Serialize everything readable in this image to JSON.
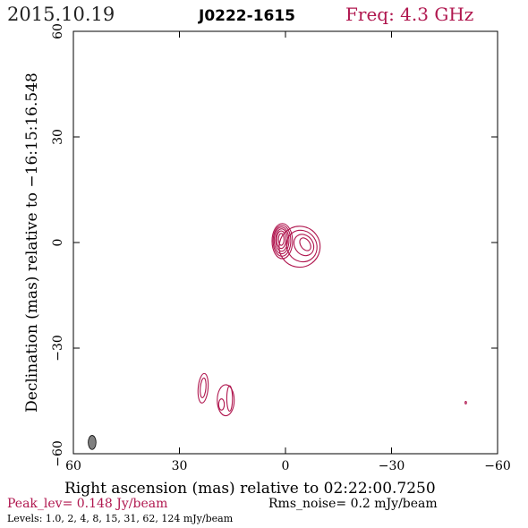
{
  "header": {
    "date": "2015.10.19",
    "source": "J0222-1615",
    "freq": "Freq: 4.3 GHz"
  },
  "footer": {
    "peak": "Peak_lev=  0.148 Jy/beam",
    "rms": "Rms_noise=  0.2 mJy/beam",
    "levels": "Levels: 1.0,   2,   4,   8,  15,  31,  62, 124 mJy/beam"
  },
  "colors": {
    "contour": "#b0174f",
    "header_date": "#222222",
    "freq": "#b0174f",
    "peak": "#b0174f",
    "beam": "#808080"
  },
  "chart_data": {
    "type": "contour",
    "xlabel": "Right ascension (mas) relative to 02:22:00.7250",
    "ylabel": "Declination (mas) relative to −16:15:16.548",
    "xlim": [
      60,
      -60
    ],
    "ylim": [
      -60,
      60
    ],
    "x_ticks": [
      60,
      30,
      0,
      -30,
      -60
    ],
    "x_tick_labels": [
      "60",
      "30",
      "0",
      "−30",
      "−60"
    ],
    "y_ticks": [
      60,
      30,
      0,
      -30,
      -60
    ],
    "y_tick_labels": [
      "60",
      "30",
      "0",
      "−30",
      "−60"
    ],
    "beam": {
      "x": 54.7,
      "y": -56.8,
      "major_mas": 4.0,
      "minor_mas": 2.2,
      "pa_deg": 0
    },
    "components": [
      {
        "name": "core",
        "contours": [
          {
            "cx": 1.2,
            "cy": 0.9,
            "rx": 0.8,
            "ry": 1.7,
            "rot": 0
          },
          {
            "cx": 1.2,
            "cy": 0.8,
            "rx": 1.3,
            "ry": 2.5,
            "rot": 0
          },
          {
            "cx": 1.1,
            "cy": 0.7,
            "rx": 1.7,
            "ry": 3.2,
            "rot": 0
          },
          {
            "cx": 1.1,
            "cy": 0.6,
            "rx": 2.1,
            "ry": 3.8,
            "rot": 0
          },
          {
            "cx": 1.0,
            "cy": 0.5,
            "rx": 2.5,
            "ry": 4.4,
            "rot": 0
          },
          {
            "cx": 0.9,
            "cy": 0.4,
            "rx": 2.9,
            "ry": 5.0,
            "rot": 0
          }
        ]
      },
      {
        "name": "jet",
        "contours": [
          {
            "cx": -5.6,
            "cy": -0.5,
            "rx": 1.3,
            "ry": 2.0,
            "rot": -35
          },
          {
            "cx": -5.2,
            "cy": -0.7,
            "rx": 2.6,
            "ry": 3.2,
            "rot": -35
          },
          {
            "cx": -4.6,
            "cy": -1.0,
            "rx": 4.2,
            "ry": 4.6,
            "rot": -35
          },
          {
            "cx": -4.0,
            "cy": -1.2,
            "rx": 5.8,
            "ry": 5.8,
            "rot": -35
          }
        ]
      },
      {
        "name": "south-1",
        "contours": [
          {
            "cx": 23.3,
            "cy": -41.3,
            "rx": 0.8,
            "ry": 2.8,
            "rot": 5
          },
          {
            "cx": 23.3,
            "cy": -41.4,
            "rx": 1.4,
            "ry": 4.2,
            "rot": 5
          }
        ]
      },
      {
        "name": "south-2",
        "contours": [
          {
            "cx": 18.1,
            "cy": -46.0,
            "rx": 0.8,
            "ry": 1.6,
            "rot": 0
          },
          {
            "cx": 15.8,
            "cy": -44.3,
            "rx": 0.8,
            "ry": 3.6,
            "rot": 0
          },
          {
            "cx": 16.9,
            "cy": -44.8,
            "rx": 2.4,
            "ry": 4.4,
            "rot": 0
          }
        ]
      },
      {
        "name": "spot",
        "contours": [
          {
            "cx": -51.0,
            "cy": -45.5,
            "rx": 0.2,
            "ry": 0.35,
            "rot": 0
          }
        ]
      }
    ]
  }
}
